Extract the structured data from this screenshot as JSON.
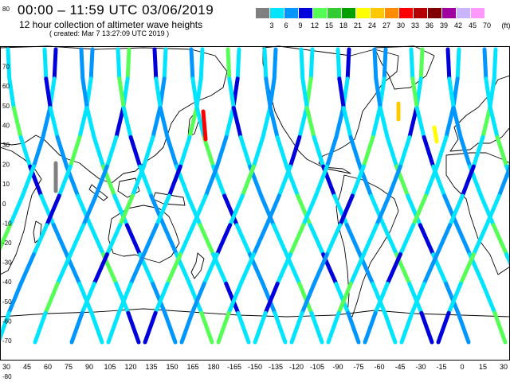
{
  "header": {
    "title": "00:00 – 11:59 UTC 03/06/2019",
    "subtitle": "12 hour collection of altimeter wave heights",
    "created": "( created: Mar  7 13:27:09 UTC 2019 )"
  },
  "legend": {
    "unit": "(ft)",
    "labels": [
      "3",
      "6",
      "9",
      "12",
      "15",
      "18",
      "21",
      "24",
      "27",
      "30",
      "33",
      "36",
      "39",
      "42",
      "45",
      "70"
    ],
    "colors": [
      "#808080",
      "#00e5ff",
      "#0096ff",
      "#0000dc",
      "#55ff55",
      "#33cc33",
      "#00a000",
      "#ffff00",
      "#ffc800",
      "#ff8c00",
      "#ff0000",
      "#b40000",
      "#800000",
      "#a000a0",
      "#c8b4ff",
      "#ff99ff"
    ]
  },
  "map": {
    "lat_labels": [
      "80",
      "70",
      "60",
      "50",
      "40",
      "30",
      "20",
      "10",
      "0",
      "-10",
      "-20",
      "-30",
      "-40",
      "-50",
      "-60",
      "-70",
      "-80"
    ],
    "lon_labels": [
      "30",
      "45",
      "60",
      "75",
      "90",
      "105",
      "120",
      "135",
      "150",
      "165",
      "180",
      "-165",
      "-150",
      "-135",
      "-120",
      "-105",
      "-90",
      "-75",
      "-60",
      "-45",
      "-30",
      "-15",
      "0",
      "15",
      "30"
    ],
    "track_colors": {
      "light": "#00e5ff",
      "mid": "#0096ff",
      "dark": "#0000dc",
      "green": "#55ff55",
      "gray": "#808080"
    }
  }
}
